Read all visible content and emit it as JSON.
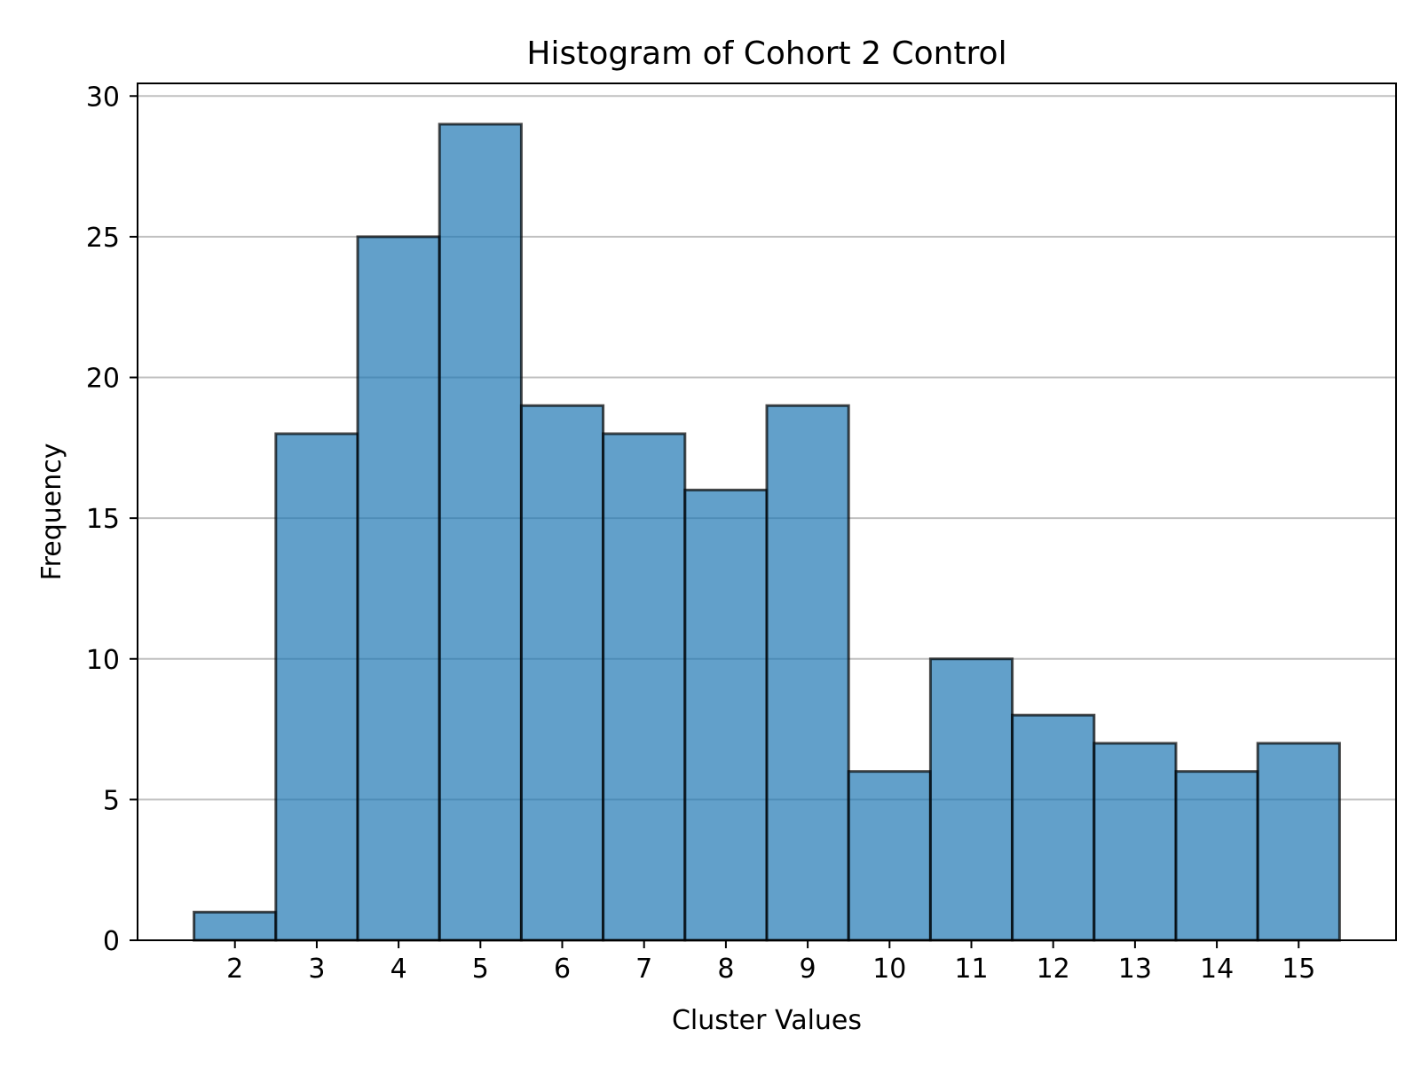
{
  "chart_data": {
    "type": "bar",
    "title": "Histogram of Cohort 2 Control",
    "xlabel": "Cluster Values",
    "ylabel": "Frequency",
    "categories": [
      "2",
      "3",
      "4",
      "5",
      "6",
      "7",
      "8",
      "9",
      "10",
      "11",
      "12",
      "13",
      "14",
      "15"
    ],
    "x": [
      2,
      3,
      4,
      5,
      6,
      7,
      8,
      9,
      10,
      11,
      12,
      13,
      14,
      15
    ],
    "values": [
      1,
      18,
      25,
      29,
      19,
      18,
      16,
      19,
      6,
      10,
      8,
      7,
      6,
      7
    ],
    "xlim": [
      0.81,
      16.19
    ],
    "ylim": [
      0,
      30.45
    ],
    "yticks": [
      0,
      5,
      10,
      15,
      20,
      25,
      30
    ],
    "grid": "y",
    "bar_color": "#1f77b4",
    "bar_edge_color": "#000000",
    "grid_color": "#c0c0c0"
  }
}
